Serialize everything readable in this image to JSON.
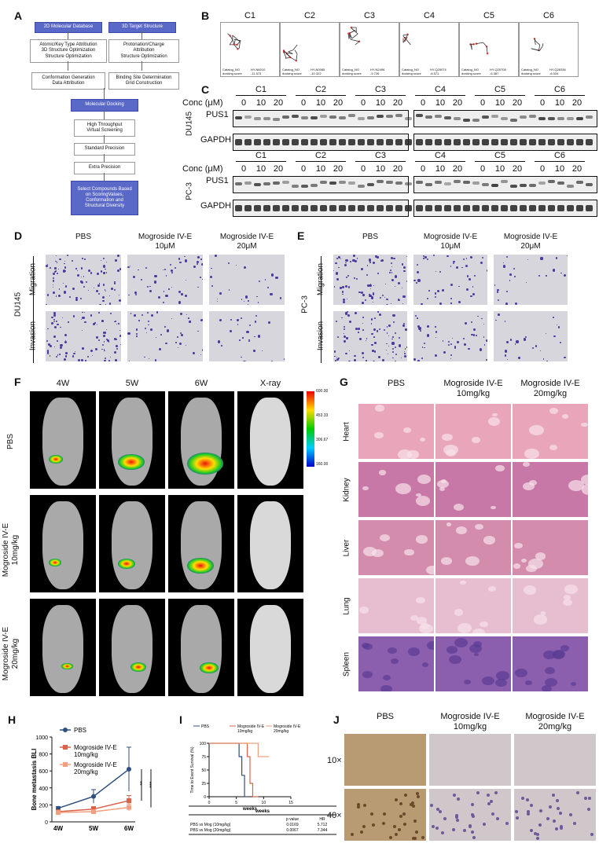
{
  "panels": {
    "A": "A",
    "B": "B",
    "C": "C",
    "D": "D",
    "E": "E",
    "F": "F",
    "G": "G",
    "H": "H",
    "I": "I",
    "J": "J"
  },
  "panelA": {
    "db": "2D Molecular Database",
    "target": "3D Target Structure",
    "left1": "Atomic/Key Type Attribution\n3D Structure Optimization\nStructure Optimization",
    "right1": "Protonation/Charge\nAttribution\nStructure Optimization",
    "left2": "Conformation Generation\nData Attribution",
    "right2": "Binding Site Determination\nGrid Construction",
    "docking": "Molecular Docking",
    "hts": "High Throughput\nVirtual Screening",
    "sp": "Standard Precision",
    "xp": "Extra Precision",
    "select": "Select Compounds Based\non ScoringValues,\nConformation and\nStructural Diversity"
  },
  "panelB": {
    "compounds": [
      "C1",
      "C2",
      "C3",
      "C4",
      "C5",
      "C6"
    ],
    "catalog": [
      "HY-N6010",
      "HY-N0085",
      "HY-N2496",
      "HY-Q25074",
      "HY-Q25708",
      "HY-Q28336"
    ],
    "scores": [
      "-11.573",
      "-10.322",
      "-9.726",
      "-6.571",
      "-6.387",
      "-6.534"
    ],
    "catalog_label": "Catalog_NO",
    "score_label": "docking score"
  },
  "panelC": {
    "compounds": [
      "C1",
      "C2",
      "C3",
      "C4",
      "C5",
      "C6"
    ],
    "conc_label": "Conc (μM)",
    "conc": [
      "0",
      "10",
      "20"
    ],
    "cell1": "DU145",
    "cell2": "PC-3",
    "pus1": "PUS1",
    "gapdh": "GAPDH"
  },
  "panelD": {
    "cell": "DU145",
    "cols": [
      "PBS",
      "Mogroside IV-E\n10μM",
      "Mogroside IV-E\n20μM"
    ],
    "rows": [
      "Migration",
      "Invasion"
    ]
  },
  "panelE": {
    "cell": "PC-3",
    "cols": [
      "PBS",
      "Mogroside IV-E\n10μM",
      "Mogroside IV-E\n20μM"
    ],
    "rows": [
      "Migration",
      "Invasion"
    ]
  },
  "panelF": {
    "cols": [
      "4W",
      "5W",
      "6W",
      "X-ray"
    ],
    "rows": [
      "PBS",
      "Mogroside IV-E\n10mg/kg",
      "Mogroside IV-E\n20mg/kg"
    ],
    "scale": [
      "600.00",
      "453.33",
      "306.67",
      "160.00"
    ]
  },
  "panelG": {
    "cols": [
      "PBS",
      "Mogroside IV-E\n10mg/kg",
      "Mogroside IV-E\n20mg/kg"
    ],
    "rows": [
      "Heart",
      "Kidney",
      "Liver",
      "Lung",
      "Spleen"
    ]
  },
  "panelH": {
    "ylabel": "Bone metastasis BLI",
    "significance": [
      "**",
      "***"
    ]
  },
  "panelI": {
    "ylabel": "Time to Event Survival (%)",
    "xlabel": "weeks",
    "table_header": "weeks",
    "col_p": "p value",
    "col_hr": "HR",
    "rows": [
      {
        "label": "PBS vs Mog (10mg/kg)",
        "p": "0.0169",
        "hr": "5.712"
      },
      {
        "label": "PBS vs Mog (20mg/kg)",
        "p": "0.0067",
        "hr": "7.344"
      }
    ]
  },
  "panelJ": {
    "cols": [
      "PBS",
      "Mogroside IV-E\n10mg/kg",
      "Mogroside IV-E\n20mg/kg"
    ],
    "rows": [
      "10×",
      "40×"
    ]
  },
  "chart_data": [
    {
      "type": "line",
      "panel": "H",
      "categories": [
        "4W",
        "5W",
        "6W"
      ],
      "ylabel": "Bone metastasis BLI",
      "ylim": [
        0,
        1000
      ],
      "yticks": [
        0,
        200,
        400,
        600,
        800,
        1000
      ],
      "series": [
        {
          "name": "PBS",
          "values": [
            160,
            300,
            620
          ],
          "err": [
            20,
            80,
            260
          ],
          "color": "#2f4f7f"
        },
        {
          "name": "Mogroside IV-E\n10mg/kg",
          "values": [
            120,
            150,
            250
          ],
          "err": [
            15,
            30,
            60
          ],
          "color": "#d9634b"
        },
        {
          "name": "Mogroside IV-E\n20mg/kg",
          "values": [
            110,
            120,
            170
          ],
          "err": [
            10,
            20,
            40
          ],
          "color": "#f0a080"
        }
      ]
    },
    {
      "type": "line",
      "panel": "I",
      "xlabel": "weeks",
      "ylabel": "Time to Event Survival (%)",
      "xlim": [
        0,
        15
      ],
      "ylim": [
        0,
        100
      ],
      "xticks": [
        0,
        5,
        10,
        15
      ],
      "yticks": [
        0,
        25,
        50,
        75,
        100
      ],
      "series": [
        {
          "name": "PBS",
          "color": "#2f4f7f",
          "steps": [
            [
              0,
              100
            ],
            [
              5.5,
              100
            ],
            [
              5.5,
              75
            ],
            [
              6,
              75
            ],
            [
              6,
              40
            ],
            [
              6.5,
              40
            ],
            [
              6.5,
              0
            ],
            [
              7,
              0
            ]
          ]
        },
        {
          "name": "Mogroside IV-E\n10mg/kg",
          "color": "#d9634b",
          "steps": [
            [
              0,
              100
            ],
            [
              7,
              100
            ],
            [
              7,
              75
            ],
            [
              7.5,
              75
            ],
            [
              7.5,
              25
            ],
            [
              8,
              25
            ],
            [
              8,
              0
            ],
            [
              9,
              0
            ]
          ]
        },
        {
          "name": "Mogroside IV-E\n20mg/kg",
          "color": "#f0a080",
          "steps": [
            [
              0,
              100
            ],
            [
              9,
              100
            ],
            [
              9,
              75
            ],
            [
              11,
              75
            ]
          ]
        }
      ]
    }
  ]
}
